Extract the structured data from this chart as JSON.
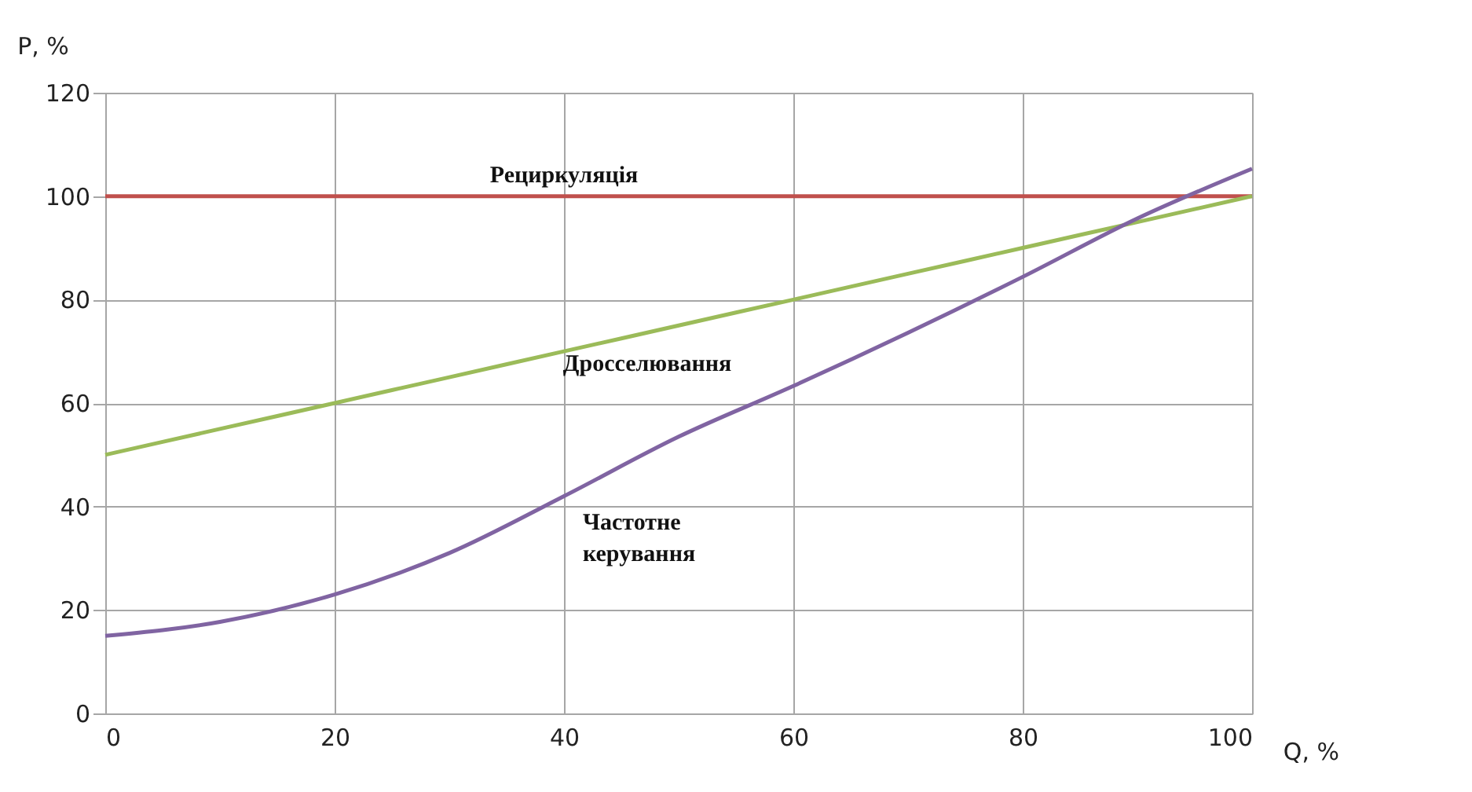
{
  "chart_data": {
    "type": "line",
    "xlabel": "Q, %",
    "ylabel": "P, %",
    "x": [
      0,
      10,
      20,
      30,
      40,
      50,
      60,
      70,
      80,
      90,
      100
    ],
    "series": [
      {
        "name": "Рециркуляція",
        "color": "#c0504d",
        "values": [
          100,
          100,
          100,
          100,
          100,
          100,
          100,
          100,
          100,
          100,
          100
        ]
      },
      {
        "name": "Дросселювання",
        "color": "#9bbb59",
        "values": [
          50,
          55,
          60,
          65,
          70,
          75,
          80,
          85,
          90,
          95,
          100
        ]
      },
      {
        "name": "Частотне\nкерування",
        "color": "#8064a2",
        "values": [
          15,
          17.7,
          23,
          31,
          42,
          53.5,
          63.3,
          73.6,
          84.4,
          95.7,
          105.3
        ]
      }
    ],
    "xlim": [
      0,
      100
    ],
    "xticks": [
      0,
      20,
      40,
      60,
      80,
      100
    ],
    "ylim": [
      0,
      120
    ],
    "yticks": [
      0,
      20,
      40,
      60,
      80,
      100,
      120
    ],
    "grid": true,
    "marker": "none",
    "line_style": "solid"
  }
}
